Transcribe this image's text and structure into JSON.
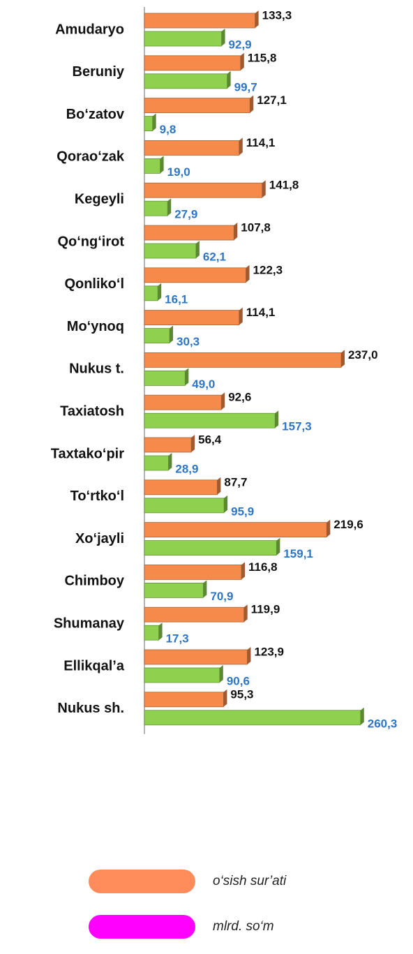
{
  "chart_data": {
    "type": "barh",
    "categories": [
      "Amudaryo",
      "Beruniy",
      "Bo‘zatov",
      "Qorao‘zak",
      "Kegeyli",
      "Qo‘ng‘irot",
      "Qonliko‘l",
      "Mo‘ynoq",
      "Nukus t.",
      "Taxiatosh",
      "Taxtako‘pir",
      "To‘rtko‘l",
      "Xo‘jayli",
      "Chimboy",
      "Shumanay",
      "Ellikqal’a",
      "Nukus sh."
    ],
    "series": [
      {
        "name": "o‘sish sur’ati",
        "color": "#F58A4B",
        "legend_color": "#FF8C5A",
        "label_color": "#111111",
        "values": [
          133.3,
          115.8,
          127.1,
          114.1,
          141.8,
          107.8,
          122.3,
          114.1,
          237.0,
          92.6,
          56.4,
          87.7,
          219.6,
          116.8,
          119.9,
          123.9,
          95.3
        ],
        "value_labels": [
          "133,3",
          "115,8",
          "127,1",
          "114,1",
          "141,8",
          "107,8",
          "122,3",
          "114,1",
          "237,0",
          "92,6",
          "56,4",
          "87,7",
          "219,6",
          "116,8",
          "119,9",
          "123,9",
          "95,3"
        ]
      },
      {
        "name": "mlrd. so‘m",
        "color": "#8FD14F",
        "legend_color": "#FF00FF",
        "label_color": "#2E75C6",
        "values": [
          92.9,
          99.7,
          9.8,
          19.0,
          27.9,
          62.1,
          16.1,
          30.3,
          49.0,
          157.3,
          28.9,
          95.9,
          159.1,
          70.9,
          17.3,
          90.6,
          260.3
        ],
        "value_labels": [
          "92,9",
          "99,7",
          "9,8",
          "19,0",
          "27,9",
          "62,1",
          "16,1",
          "30,3",
          "49,0",
          "157,3",
          "28,9",
          "95,9",
          "159,1",
          "70,9",
          "17,3",
          "90,6",
          "260,3"
        ]
      }
    ],
    "xlim": [
      0,
      300
    ]
  }
}
